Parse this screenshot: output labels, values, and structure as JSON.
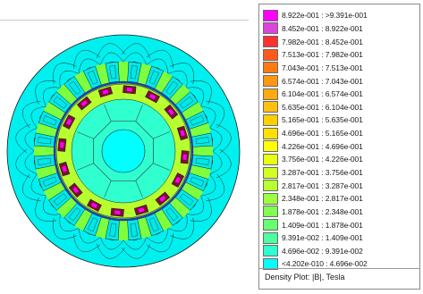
{
  "legend": {
    "entries": [
      {
        "label": "8.922e-001 : >9.391e-001",
        "color": "#ff00ff"
      },
      {
        "label": "8.452e-001 : 8.922e-001",
        "color": "#dd44dd"
      },
      {
        "label": "7.982e-001 : 8.452e-001",
        "color": "#ff3030"
      },
      {
        "label": "7.513e-001 : 7.982e-001",
        "color": "#ff5a1a"
      },
      {
        "label": "7.043e-001 : 7.513e-001",
        "color": "#ff7a10"
      },
      {
        "label": "6.574e-001 : 7.043e-001",
        "color": "#ff9810"
      },
      {
        "label": "6.104e-001 : 6.574e-001",
        "color": "#ffaa10"
      },
      {
        "label": "5.635e-001 : 6.104e-001",
        "color": "#ffc010"
      },
      {
        "label": "5.165e-001 : 5.635e-001",
        "color": "#ffd000"
      },
      {
        "label": "4.696e-001 : 5.165e-001",
        "color": "#ffe000"
      },
      {
        "label": "4.226e-001 : 4.696e-001",
        "color": "#ffff00"
      },
      {
        "label": "3.756e-001 : 4.226e-001",
        "color": "#e8ff10"
      },
      {
        "label": "3.287e-001 : 3.756e-001",
        "color": "#d2ff20"
      },
      {
        "label": "2.817e-001 : 3.287e-001",
        "color": "#b8ff30"
      },
      {
        "label": "2.348e-001 : 2.817e-001",
        "color": "#9cff40"
      },
      {
        "label": "1.878e-001 : 2.348e-001",
        "color": "#80ff50"
      },
      {
        "label": "1.409e-001 : 1.878e-001",
        "color": "#66ff70"
      },
      {
        "label": "9.391e-002 : 1.409e-001",
        "color": "#4cffa0"
      },
      {
        "label": "4.696e-002 : 9.391e-002",
        "color": "#30ffd0"
      },
      {
        "label": "<4.202e-010 : 4.696e-002",
        "color": "#00ffff"
      }
    ],
    "caption": "Density Plot: |B|, Tesla"
  },
  "plot": {
    "stator_slots": 24,
    "rotor_poles": 16,
    "colors": {
      "background": "#00ffff",
      "stator_yoke": "#00f0f0",
      "stator_tooth": "#7dff40",
      "rotor_ring": "#b8ff30",
      "rotor_core": "#30ffd0",
      "slot": "#00e8e8",
      "magnet": "#ff00ff",
      "magnet_dark": "#7a1030",
      "airgap": "#2040a0",
      "flux_line": "#2a2a2a"
    }
  }
}
